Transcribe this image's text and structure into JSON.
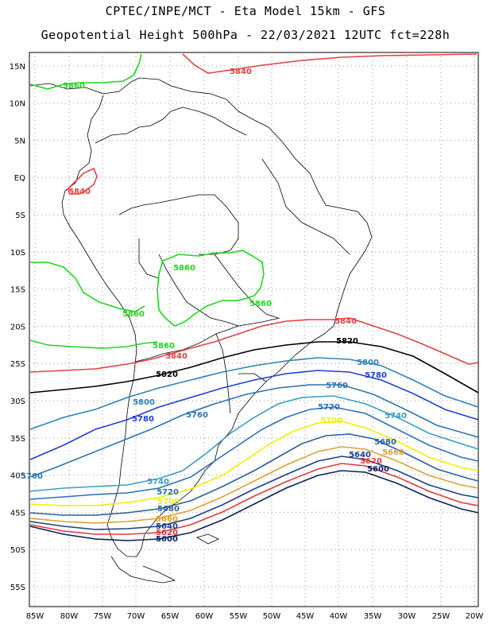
{
  "title_line1": "CPTEC/INPE/MCT -  Eta Model 15km - GFS",
  "title_line2": "Geopotential Height 500hPa - 22/03/2021 12UTC fct=228h",
  "lat_labels": [
    "15N",
    "10N",
    "5N",
    "EQ",
    "5S",
    "10S",
    "15S",
    "20S",
    "25S",
    "30S",
    "35S",
    "40S",
    "45S",
    "50S",
    "55S"
  ],
  "lon_labels": [
    "85W",
    "80W",
    "75W",
    "70W",
    "65W",
    "60W",
    "55W",
    "50W",
    "45W",
    "40W",
    "35W",
    "30W",
    "25W",
    "20W"
  ],
  "colors": {
    "c5600": "#0b1f5c",
    "c5620": "#e03a3a",
    "c5640": "#1a3f8a",
    "c5660": "#e0a030",
    "c5680": "#2a5e9a",
    "c5700": "#f0f000",
    "c5720": "#2d6fbf",
    "c5740": "#3a9ec0",
    "c5760": "#2a74b0",
    "c5780": "#1e3fd6",
    "c5800": "#2a86b8",
    "c5820": "#000000",
    "c5840": "#e84040",
    "c5860": "#1fd61f"
  },
  "contour_labels": [
    {
      "text": "5840",
      "color": "c5840"
    },
    {
      "text": "5860",
      "color": "c5860"
    },
    {
      "text": "5840",
      "color": "c5840"
    },
    {
      "text": "5860",
      "color": "c5860"
    },
    {
      "text": "5860",
      "color": "c5860"
    },
    {
      "text": "5860",
      "color": "c5860"
    },
    {
      "text": "5860",
      "color": "c5860"
    },
    {
      "text": "5840",
      "color": "c5840"
    },
    {
      "text": "5840",
      "color": "c5840"
    },
    {
      "text": "5820",
      "color": "c5820"
    },
    {
      "text": "5820",
      "color": "c5820"
    },
    {
      "text": "5800",
      "color": "c5800"
    },
    {
      "text": "5780",
      "color": "c5780"
    },
    {
      "text": "5800",
      "color": "c5800"
    },
    {
      "text": "5760",
      "color": "c5760"
    },
    {
      "text": "5780",
      "color": "c5780"
    },
    {
      "text": "5760",
      "color": "c5760"
    },
    {
      "text": "5720",
      "color": "c5720"
    },
    {
      "text": "5740",
      "color": "c5740"
    },
    {
      "text": "5700",
      "color": "c5700"
    },
    {
      "text": "5760",
      "color": "c5760"
    },
    {
      "text": "5740",
      "color": "c5740"
    },
    {
      "text": "5720",
      "color": "c5720"
    },
    {
      "text": "5700",
      "color": "c5700"
    },
    {
      "text": "5680",
      "color": "c5680"
    },
    {
      "text": "5660",
      "color": "c5660"
    },
    {
      "text": "5640",
      "color": "c5640"
    },
    {
      "text": "5620",
      "color": "c5620"
    },
    {
      "text": "5600",
      "color": "c5600"
    },
    {
      "text": "5680",
      "color": "c5680"
    },
    {
      "text": "5660",
      "color": "c5660"
    },
    {
      "text": "5640",
      "color": "c5640"
    },
    {
      "text": "5620",
      "color": "c5620"
    },
    {
      "text": "5600",
      "color": "c5600"
    }
  ]
}
